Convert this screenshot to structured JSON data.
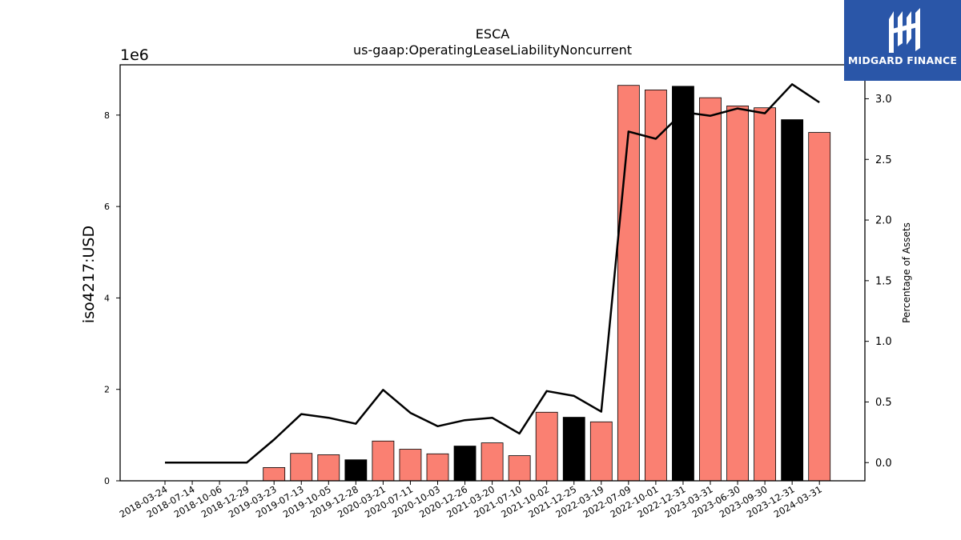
{
  "chart_data": {
    "type": "bar",
    "title": "ESCA",
    "subtitle": "us-gaap:OperatingLeaseLiabilityNoncurrent",
    "ylabel": "iso4217:USD",
    "y_offset_label": "1e6",
    "y2label": "Percentage of Assets",
    "ylim": [
      0,
      9100000
    ],
    "y2lim": [
      -0.15,
      3.28
    ],
    "y_ticks": [
      0,
      2,
      4,
      6,
      8
    ],
    "y2_ticks": [
      "0.0",
      "0.5",
      "1.0",
      "1.5",
      "2.0",
      "2.5",
      "3.0"
    ],
    "categories": [
      "2018-03-24",
      "2018-07-14",
      "2018-10-06",
      "2018-12-29",
      "2019-03-23",
      "2019-07-13",
      "2019-10-05",
      "2019-12-28",
      "2020-03-21",
      "2020-07-11",
      "2020-10-03",
      "2020-12-26",
      "2021-03-20",
      "2021-07-10",
      "2021-10-02",
      "2021-12-25",
      "2022-03-19",
      "2022-07-09",
      "2022-10-01",
      "2022-12-31",
      "2023-03-31",
      "2023-06-30",
      "2023-09-30",
      "2023-12-31",
      "2024-03-31"
    ],
    "series": [
      {
        "type": "bar",
        "values": [
          0,
          0,
          0,
          0,
          290000,
          600000,
          570000,
          460000,
          870000,
          690000,
          590000,
          760000,
          830000,
          550000,
          1500000,
          1390000,
          1290000,
          8650000,
          8550000,
          8630000,
          8380000,
          8200000,
          8160000,
          7900000,
          7620000
        ],
        "colors": [
          "#fa8072",
          "#fa8072",
          "#fa8072",
          "#fa8072",
          "#fa8072",
          "#fa8072",
          "#fa8072",
          "#000000",
          "#fa8072",
          "#fa8072",
          "#fa8072",
          "#000000",
          "#fa8072",
          "#fa8072",
          "#fa8072",
          "#000000",
          "#fa8072",
          "#fa8072",
          "#fa8072",
          "#000000",
          "#fa8072",
          "#fa8072",
          "#fa8072",
          "#000000",
          "#fa8072"
        ]
      },
      {
        "type": "line",
        "axis": "right",
        "color": "#000000",
        "values": [
          0,
          0,
          0,
          0,
          0.19,
          0.4,
          0.37,
          0.32,
          0.6,
          0.41,
          0.3,
          0.35,
          0.37,
          0.24,
          0.59,
          0.55,
          0.42,
          2.73,
          2.67,
          2.89,
          2.86,
          2.92,
          2.88,
          3.12,
          2.97
        ]
      }
    ]
  },
  "logo": {
    "text": "MIDGARD FINANCE"
  }
}
